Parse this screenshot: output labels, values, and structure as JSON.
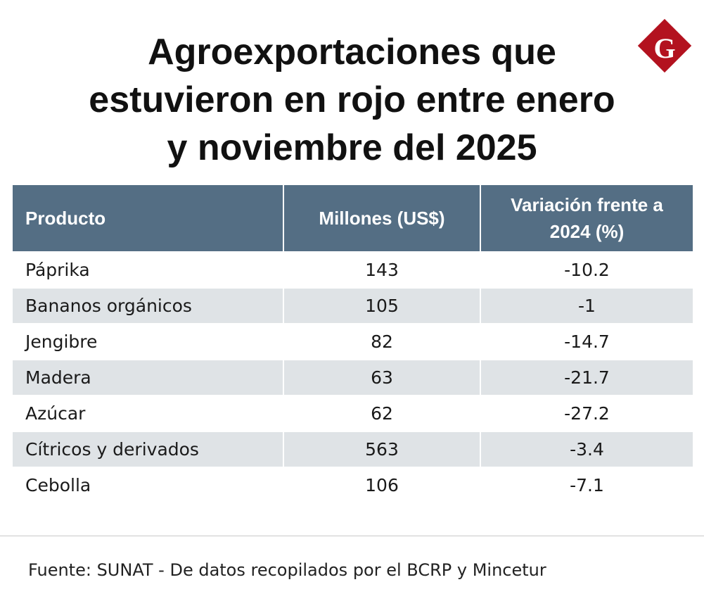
{
  "header": {
    "title": [
      "Agroexportaciones que",
      "estuvieron en rojo entre enero",
      "y noviembre del 2025"
    ],
    "logo": "G"
  },
  "table": {
    "columns": [
      "Producto",
      "Millones (US$)",
      "Variación frente a 2024 (%)"
    ],
    "rows": [
      [
        "Páprika",
        143,
        -10.2
      ],
      [
        "Bananos orgánicos",
        105,
        -1
      ],
      [
        "Jengibre",
        82,
        -14.7
      ],
      [
        "Madera",
        63,
        -21.7
      ],
      [
        "Azúcar",
        62,
        -27.2
      ],
      [
        "Cítricos y derivados",
        563,
        -3.4
      ],
      [
        "Cebolla",
        106,
        -7.1
      ]
    ]
  },
  "footer": {
    "source": "Fuente: SUNAT - De datos recopilados por el BCRP y Mincetur"
  }
}
